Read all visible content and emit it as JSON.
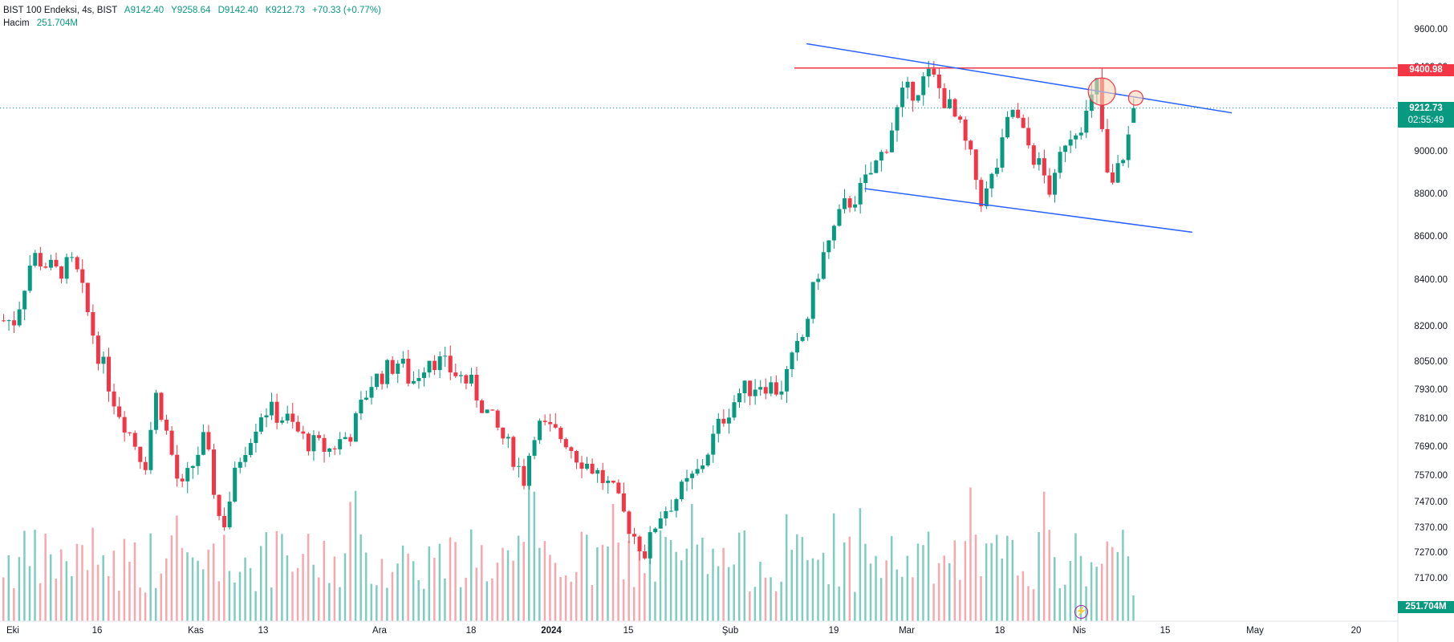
{
  "legend": {
    "symbol": "BIST 100 Endeksi, 4s, BIST",
    "open": "A9142.40",
    "high": "Y9258.64",
    "low": "D9142.40",
    "close": "K9212.73",
    "change": "+70.33 (+0.77%)",
    "volume_label": "Hacim",
    "volume_value": "251.704M"
  },
  "price_tags": {
    "resistance": "9400.98",
    "last_price": "9212.73",
    "countdown": "02:55:49",
    "volume": "251.704M"
  },
  "icons": {
    "replay": "lightning-icon"
  },
  "colors": {
    "up": "#089981",
    "down": "#f23645",
    "up_volume": "#7fcdc1",
    "down_volume": "#f7a8ae",
    "trendline": "#2962ff",
    "resistance": "#f23645",
    "marker_fill": "#fbd5b5",
    "marker_stroke": "#f23645"
  },
  "chart_data": {
    "type": "candlestick",
    "symbol": "BIST 100 Endeksi",
    "interval": "4s",
    "y_ticks": [
      "9600.00",
      "9400.00",
      "9200.00",
      "9000.00",
      "8800.00",
      "8600.00",
      "8400.00",
      "8200.00",
      "8050.00",
      "7930.00",
      "7810.00",
      "7690.00",
      "7570.00",
      "7470.00",
      "7370.00",
      "7270.00",
      "7170.00"
    ],
    "x_ticks": [
      {
        "label": "Eki",
        "bold": false
      },
      {
        "label": "16",
        "bold": false
      },
      {
        "label": "Kas",
        "bold": false
      },
      {
        "label": "13",
        "bold": false
      },
      {
        "label": "Ara",
        "bold": false
      },
      {
        "label": "18",
        "bold": false
      },
      {
        "label": "2024",
        "bold": true
      },
      {
        "label": "15",
        "bold": false
      },
      {
        "label": "Şub",
        "bold": false
      },
      {
        "label": "19",
        "bold": false
      },
      {
        "label": "Mar",
        "bold": false
      },
      {
        "label": "18",
        "bold": false
      },
      {
        "label": "Nis",
        "bold": false
      },
      {
        "label": "15",
        "bold": false
      },
      {
        "label": "May",
        "bold": false
      },
      {
        "label": "20",
        "bold": false
      }
    ],
    "price_path": [
      [
        "2023-10-02",
        8230
      ],
      [
        "2023-10-05",
        8520
      ],
      [
        "2023-10-09",
        8440
      ],
      [
        "2023-10-12",
        8480
      ],
      [
        "2023-10-16",
        8100
      ],
      [
        "2023-10-19",
        7880
      ],
      [
        "2023-10-24",
        7620
      ],
      [
        "2023-10-26",
        7930
      ],
      [
        "2023-10-30",
        7500
      ],
      [
        "2023-11-03",
        7730
      ],
      [
        "2023-11-06",
        7360
      ],
      [
        "2023-11-09",
        7650
      ],
      [
        "2023-11-13",
        7860
      ],
      [
        "2023-11-17",
        7810
      ],
      [
        "2023-11-20",
        7720
      ],
      [
        "2023-11-24",
        7680
      ],
      [
        "2023-11-28",
        7760
      ],
      [
        "2023-12-01",
        7960
      ],
      [
        "2023-12-06",
        8060
      ],
      [
        "2023-12-08",
        7960
      ],
      [
        "2023-12-11",
        8080
      ],
      [
        "2023-12-14",
        8030
      ],
      [
        "2023-12-18",
        7960
      ],
      [
        "2023-12-21",
        7830
      ],
      [
        "2023-12-25",
        7670
      ],
      [
        "2023-12-27",
        7560
      ],
      [
        "2023-12-29",
        7790
      ],
      [
        "2024-01-03",
        7730
      ],
      [
        "2024-01-05",
        7660
      ],
      [
        "2024-01-08",
        7600
      ],
      [
        "2024-01-11",
        7520
      ],
      [
        "2024-01-15",
        7340
      ],
      [
        "2024-01-17",
        7270
      ],
      [
        "2024-01-19",
        7420
      ],
      [
        "2024-01-23",
        7510
      ],
      [
        "2024-01-26",
        7590
      ],
      [
        "2024-01-30",
        7810
      ],
      [
        "2024-02-02",
        7920
      ],
      [
        "2024-02-06",
        7970
      ],
      [
        "2024-02-09",
        7930
      ],
      [
        "2024-02-13",
        8160
      ],
      [
        "2024-02-16",
        8480
      ],
      [
        "2024-02-20",
        8740
      ],
      [
        "2024-02-23",
        8820
      ],
      [
        "2024-02-27",
        9010
      ],
      [
        "2024-03-01",
        9260
      ],
      [
        "2024-03-04",
        9320
      ],
      [
        "2024-03-06",
        9370
      ],
      [
        "2024-03-08",
        9280
      ],
      [
        "2024-03-11",
        9120
      ],
      [
        "2024-03-13",
        8960
      ],
      [
        "2024-03-15",
        8760
      ],
      [
        "2024-03-18",
        8980
      ],
      [
        "2024-03-20",
        9220
      ],
      [
        "2024-03-22",
        9080
      ],
      [
        "2024-03-25",
        8920
      ],
      [
        "2024-03-27",
        8800
      ],
      [
        "2024-03-29",
        9060
      ],
      [
        "2024-04-02",
        9180
      ],
      [
        "2024-04-04",
        9340
      ],
      [
        "2024-04-05",
        9000
      ],
      [
        "2024-04-06",
        8800
      ],
      [
        "2024-04-08",
        8960
      ],
      [
        "2024-04-10",
        9130
      ],
      [
        "2024-04-11",
        9212.73
      ]
    ],
    "annotations": [
      {
        "type": "horizontal_line",
        "value": 9400.98,
        "color": "#f23645"
      },
      {
        "type": "trendline",
        "from": [
          "2024-02-14",
          9530
        ],
        "to": [
          "2024-04-28",
          9190
        ],
        "color": "#2962ff"
      },
      {
        "type": "trendline",
        "from": [
          "2024-02-24",
          8830
        ],
        "to": [
          "2024-04-21",
          8625
        ],
        "color": "#2962ff"
      },
      {
        "type": "circle",
        "at": [
          "2024-04-05",
          9290
        ]
      },
      {
        "type": "circle",
        "at": [
          "2024-04-11",
          9260
        ]
      }
    ],
    "last_price": 9212.73,
    "volume_last": "251.704M",
    "grid": false
  }
}
